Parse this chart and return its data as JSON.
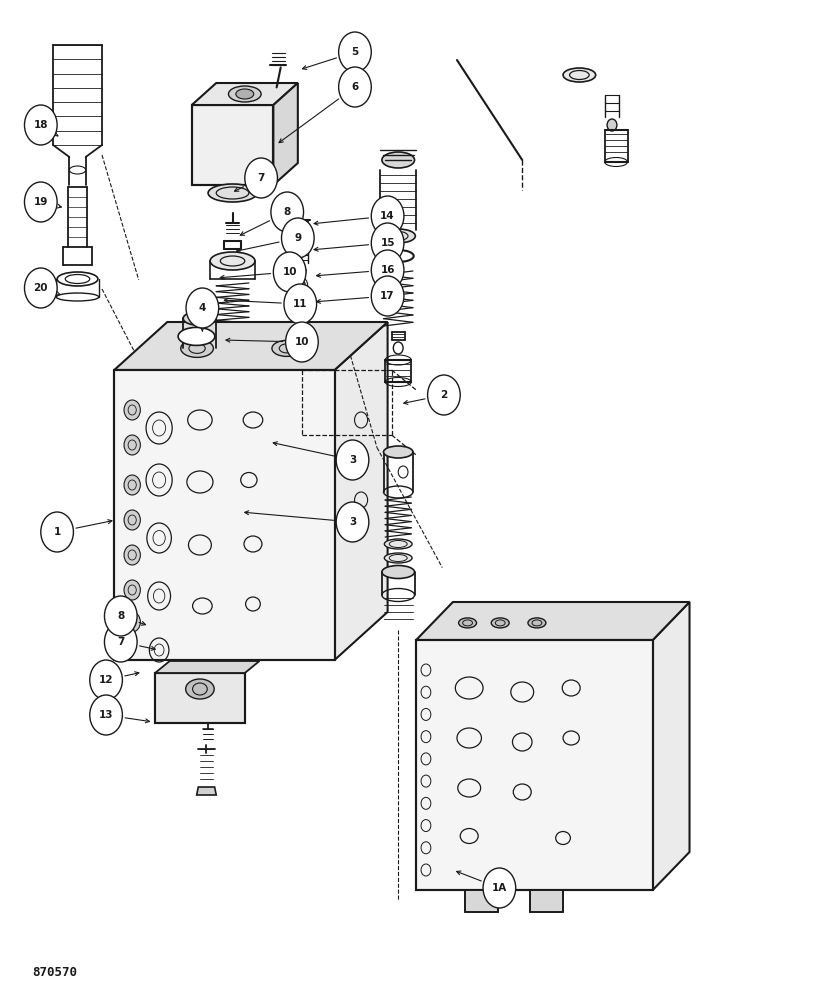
{
  "bg_color": "#ffffff",
  "line_color": "#1a1a1a",
  "footer_text": "870570",
  "figsize": [
    8.16,
    10.0
  ],
  "dpi": 100
}
